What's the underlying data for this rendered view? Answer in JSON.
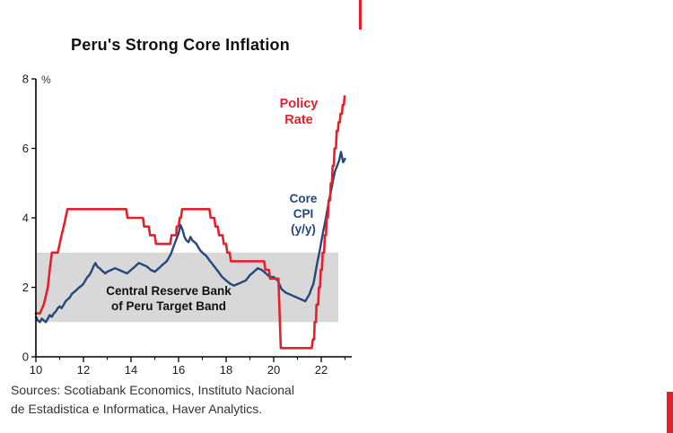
{
  "decorations": {
    "divider_color": "#e4202c"
  },
  "sources": {
    "line1": "Sources: Scotiabank Economics, Instituto Nacional",
    "line2": "de Estadistica e Informatica, Haver Analytics."
  },
  "chart_data": {
    "type": "line",
    "title": "Peru's Strong Core Inflation",
    "ylabel": "%",
    "ylim": [
      0,
      8
    ],
    "xlim": [
      2010,
      2023.3
    ],
    "grid": false,
    "legend_position": "annotations-inline",
    "y_ticks": [
      {
        "value": 0,
        "label": "0"
      },
      {
        "value": 2,
        "label": "2"
      },
      {
        "value": 4,
        "label": "4"
      },
      {
        "value": 6,
        "label": "6"
      },
      {
        "value": 8,
        "label": "8"
      }
    ],
    "x_ticks": [
      {
        "value": 2010,
        "label": "10"
      },
      {
        "value": 2012,
        "label": "12"
      },
      {
        "value": 2014,
        "label": "14"
      },
      {
        "value": 2016,
        "label": "16"
      },
      {
        "value": 2018,
        "label": "18"
      },
      {
        "value": 2020,
        "label": "20"
      },
      {
        "value": 2022,
        "label": "22"
      }
    ],
    "x_minor_ticks": [
      2011,
      2013,
      2015,
      2017,
      2019,
      2021,
      2023
    ],
    "target_band": {
      "from": 1,
      "to": 3,
      "color": "#d8d8d8",
      "label": {
        "line1": "Central Reserve Bank",
        "line2": "of Peru Target Band"
      }
    },
    "annotations": {
      "policy_rate": {
        "line1": "Policy",
        "line2": "Rate",
        "color": "#e4202c"
      },
      "core_cpi": {
        "line1": "Core",
        "line2": "CPI",
        "line3": "(y/y)",
        "color": "#25477b"
      }
    },
    "series": [
      {
        "name": "Core CPI (y/y)",
        "color": "#25477b",
        "width": 2.4,
        "points": [
          [
            2010.0,
            1.15
          ],
          [
            2010.08,
            1.05
          ],
          [
            2010.17,
            1.0
          ],
          [
            2010.25,
            1.1
          ],
          [
            2010.33,
            1.05
          ],
          [
            2010.42,
            1.0
          ],
          [
            2010.5,
            1.1
          ],
          [
            2010.58,
            1.2
          ],
          [
            2010.67,
            1.15
          ],
          [
            2010.75,
            1.25
          ],
          [
            2010.83,
            1.3
          ],
          [
            2010.92,
            1.4
          ],
          [
            2011.0,
            1.45
          ],
          [
            2011.08,
            1.4
          ],
          [
            2011.17,
            1.5
          ],
          [
            2011.25,
            1.6
          ],
          [
            2011.33,
            1.65
          ],
          [
            2011.42,
            1.7
          ],
          [
            2011.5,
            1.8
          ],
          [
            2011.58,
            1.85
          ],
          [
            2011.67,
            1.9
          ],
          [
            2011.75,
            1.95
          ],
          [
            2011.83,
            2.0
          ],
          [
            2011.92,
            2.05
          ],
          [
            2012.0,
            2.1
          ],
          [
            2012.08,
            2.2
          ],
          [
            2012.17,
            2.3
          ],
          [
            2012.25,
            2.35
          ],
          [
            2012.33,
            2.45
          ],
          [
            2012.42,
            2.6
          ],
          [
            2012.5,
            2.7
          ],
          [
            2012.58,
            2.6
          ],
          [
            2012.67,
            2.55
          ],
          [
            2012.75,
            2.5
          ],
          [
            2012.83,
            2.45
          ],
          [
            2012.92,
            2.4
          ],
          [
            2013.0,
            2.45
          ],
          [
            2013.17,
            2.5
          ],
          [
            2013.33,
            2.55
          ],
          [
            2013.5,
            2.5
          ],
          [
            2013.67,
            2.45
          ],
          [
            2013.83,
            2.4
          ],
          [
            2014.0,
            2.5
          ],
          [
            2014.17,
            2.6
          ],
          [
            2014.33,
            2.7
          ],
          [
            2014.5,
            2.65
          ],
          [
            2014.67,
            2.6
          ],
          [
            2014.83,
            2.5
          ],
          [
            2015.0,
            2.45
          ],
          [
            2015.17,
            2.55
          ],
          [
            2015.33,
            2.65
          ],
          [
            2015.5,
            2.75
          ],
          [
            2015.67,
            2.95
          ],
          [
            2015.83,
            3.25
          ],
          [
            2016.0,
            3.55
          ],
          [
            2016.08,
            3.8
          ],
          [
            2016.17,
            3.65
          ],
          [
            2016.25,
            3.45
          ],
          [
            2016.33,
            3.35
          ],
          [
            2016.42,
            3.3
          ],
          [
            2016.5,
            3.45
          ],
          [
            2016.58,
            3.35
          ],
          [
            2016.67,
            3.3
          ],
          [
            2016.75,
            3.25
          ],
          [
            2016.83,
            3.15
          ],
          [
            2016.92,
            3.05
          ],
          [
            2017.0,
            3.0
          ],
          [
            2017.17,
            2.9
          ],
          [
            2017.33,
            2.75
          ],
          [
            2017.5,
            2.6
          ],
          [
            2017.67,
            2.45
          ],
          [
            2017.83,
            2.3
          ],
          [
            2018.0,
            2.2
          ],
          [
            2018.17,
            2.1
          ],
          [
            2018.33,
            2.05
          ],
          [
            2018.5,
            2.1
          ],
          [
            2018.67,
            2.15
          ],
          [
            2018.83,
            2.2
          ],
          [
            2019.0,
            2.35
          ],
          [
            2019.17,
            2.45
          ],
          [
            2019.33,
            2.55
          ],
          [
            2019.5,
            2.5
          ],
          [
            2019.67,
            2.4
          ],
          [
            2019.83,
            2.3
          ],
          [
            2020.0,
            2.3
          ],
          [
            2020.17,
            2.2
          ],
          [
            2020.33,
            1.95
          ],
          [
            2020.5,
            1.85
          ],
          [
            2020.67,
            1.8
          ],
          [
            2020.83,
            1.75
          ],
          [
            2021.0,
            1.7
          ],
          [
            2021.17,
            1.65
          ],
          [
            2021.33,
            1.6
          ],
          [
            2021.5,
            1.8
          ],
          [
            2021.58,
            1.95
          ],
          [
            2021.67,
            2.1
          ],
          [
            2021.75,
            2.4
          ],
          [
            2021.83,
            2.7
          ],
          [
            2021.92,
            3.0
          ],
          [
            2022.0,
            3.3
          ],
          [
            2022.08,
            3.6
          ],
          [
            2022.17,
            3.9
          ],
          [
            2022.25,
            4.2
          ],
          [
            2022.33,
            4.5
          ],
          [
            2022.42,
            4.8
          ],
          [
            2022.5,
            5.1
          ],
          [
            2022.58,
            5.35
          ],
          [
            2022.67,
            5.5
          ],
          [
            2022.75,
            5.65
          ],
          [
            2022.83,
            5.9
          ],
          [
            2022.92,
            5.6
          ],
          [
            2023.0,
            5.7
          ]
        ]
      },
      {
        "name": "Policy Rate",
        "color": "#e4202c",
        "width": 2.6,
        "points": [
          [
            2010.0,
            1.25
          ],
          [
            2010.17,
            1.25
          ],
          [
            2010.33,
            1.5
          ],
          [
            2010.42,
            1.75
          ],
          [
            2010.5,
            2.0
          ],
          [
            2010.58,
            2.5
          ],
          [
            2010.67,
            3.0
          ],
          [
            2010.92,
            3.0
          ],
          [
            2011.0,
            3.25
          ],
          [
            2011.08,
            3.5
          ],
          [
            2011.17,
            3.75
          ],
          [
            2011.25,
            4.0
          ],
          [
            2011.33,
            4.25
          ],
          [
            2013.8,
            4.25
          ],
          [
            2013.85,
            4.0
          ],
          [
            2014.5,
            4.0
          ],
          [
            2014.55,
            3.75
          ],
          [
            2014.75,
            3.75
          ],
          [
            2014.8,
            3.5
          ],
          [
            2015.0,
            3.5
          ],
          [
            2015.05,
            3.25
          ],
          [
            2015.65,
            3.25
          ],
          [
            2015.7,
            3.5
          ],
          [
            2015.9,
            3.5
          ],
          [
            2015.92,
            3.75
          ],
          [
            2016.0,
            3.75
          ],
          [
            2016.05,
            4.0
          ],
          [
            2016.1,
            4.0
          ],
          [
            2016.15,
            4.25
          ],
          [
            2017.3,
            4.25
          ],
          [
            2017.35,
            4.0
          ],
          [
            2017.5,
            4.0
          ],
          [
            2017.55,
            3.75
          ],
          [
            2017.65,
            3.75
          ],
          [
            2017.7,
            3.5
          ],
          [
            2017.85,
            3.5
          ],
          [
            2017.9,
            3.25
          ],
          [
            2018.0,
            3.25
          ],
          [
            2018.05,
            3.0
          ],
          [
            2018.15,
            3.0
          ],
          [
            2018.2,
            2.75
          ],
          [
            2019.6,
            2.75
          ],
          [
            2019.65,
            2.5
          ],
          [
            2019.8,
            2.5
          ],
          [
            2019.85,
            2.25
          ],
          [
            2020.2,
            2.25
          ],
          [
            2020.25,
            1.25
          ],
          [
            2020.3,
            0.25
          ],
          [
            2021.6,
            0.25
          ],
          [
            2021.65,
            0.5
          ],
          [
            2021.7,
            0.5
          ],
          [
            2021.72,
            1.0
          ],
          [
            2021.78,
            1.0
          ],
          [
            2021.8,
            1.5
          ],
          [
            2021.87,
            1.5
          ],
          [
            2021.9,
            2.0
          ],
          [
            2021.95,
            2.0
          ],
          [
            2021.98,
            2.5
          ],
          [
            2022.03,
            2.5
          ],
          [
            2022.06,
            3.0
          ],
          [
            2022.12,
            3.0
          ],
          [
            2022.15,
            3.5
          ],
          [
            2022.2,
            3.5
          ],
          [
            2022.23,
            4.0
          ],
          [
            2022.28,
            4.0
          ],
          [
            2022.31,
            4.5
          ],
          [
            2022.37,
            4.5
          ],
          [
            2022.4,
            5.0
          ],
          [
            2022.45,
            5.0
          ],
          [
            2022.48,
            5.5
          ],
          [
            2022.53,
            5.5
          ],
          [
            2022.56,
            6.0
          ],
          [
            2022.62,
            6.0
          ],
          [
            2022.65,
            6.5
          ],
          [
            2022.7,
            6.5
          ],
          [
            2022.73,
            6.75
          ],
          [
            2022.78,
            6.75
          ],
          [
            2022.81,
            7.0
          ],
          [
            2022.87,
            7.0
          ],
          [
            2022.9,
            7.25
          ],
          [
            2022.95,
            7.25
          ],
          [
            2022.98,
            7.5
          ]
        ]
      }
    ]
  }
}
